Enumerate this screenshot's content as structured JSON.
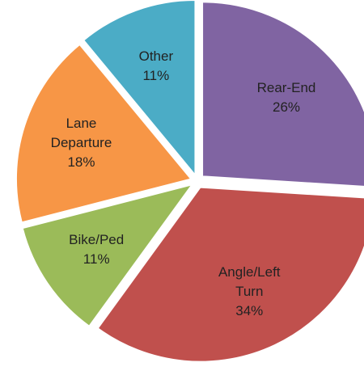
{
  "chart_data": {
    "type": "pie",
    "categories": [
      "Rear-End",
      "Angle/Left Turn",
      "Bike/Ped",
      "Lane Departure",
      "Other"
    ],
    "values": [
      26,
      34,
      11,
      18,
      11
    ],
    "value_labels": [
      "26%",
      "34%",
      "11%",
      "18%",
      "11%"
    ],
    "colors": [
      "#8064a2",
      "#c0504d",
      "#9bbb59",
      "#f79646",
      "#4bacc6"
    ]
  }
}
